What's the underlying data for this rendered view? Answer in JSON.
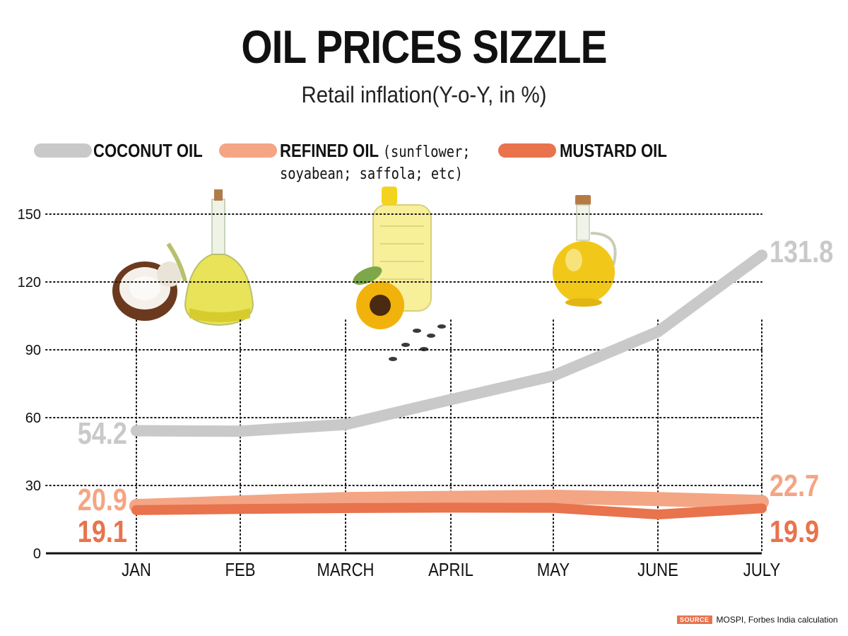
{
  "title": "OIL PRICES SIZZLE",
  "subtitle": "Retail inflation(Y-o-Y, in %)",
  "legend": {
    "coconut": "COCONUT OIL",
    "refined": "REFINED OIL",
    "refined_note_line1": "(sunflower;",
    "refined_note_line2": "soyabean; saffola; etc)",
    "mustard": "MUSTARD OIL"
  },
  "colors": {
    "coconut": "#c9c9c9",
    "refined": "#f4a584",
    "mustard": "#e8734d",
    "axis": "#111111",
    "grid": "#111111"
  },
  "chart_data": {
    "type": "line",
    "categories": [
      "JAN",
      "FEB",
      "MARCH",
      "APRIL",
      "MAY",
      "JUNE",
      "JULY"
    ],
    "y_ticks": [
      "0",
      "30",
      "60",
      "90",
      "120",
      "150"
    ],
    "ylim": [
      0,
      150
    ],
    "grid": true,
    "legend_position": "top",
    "series": [
      {
        "name": "COCONUT OIL",
        "color": "#c9c9c9",
        "values": [
          54.2,
          54.0,
          57.0,
          68.0,
          78.5,
          98.0,
          131.8
        ]
      },
      {
        "name": "REFINED OIL",
        "color": "#f4a584",
        "values": [
          20.9,
          22.5,
          24.0,
          24.5,
          25.0,
          24.0,
          22.7
        ]
      },
      {
        "name": "MUSTARD OIL",
        "color": "#e8734d",
        "values": [
          19.1,
          19.6,
          20.0,
          20.2,
          20.1,
          17.2,
          19.9
        ]
      }
    ],
    "annotations": {
      "coconut_start": "54.2",
      "coconut_end": "131.8",
      "refined_start": "20.9",
      "refined_end": "22.7",
      "mustard_start": "19.1",
      "mustard_end": "19.9"
    }
  },
  "source": {
    "tag": "SOURCE",
    "text": "MOSPI, Forbes India calculation"
  }
}
